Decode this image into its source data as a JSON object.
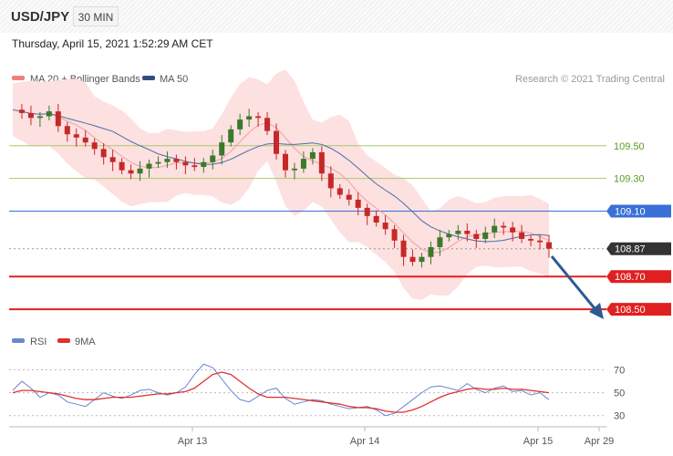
{
  "header": {
    "symbol": "USD/JPY",
    "timeframe": "30 MIN",
    "timestamp": "Thursday, April 15, 2021 1:52:29 AM CET"
  },
  "legend": {
    "ma20_label": "MA 20 + Bollinger Bands",
    "ma50_label": "MA 50",
    "copyright": "Research © 2021 Trading Central",
    "rsi_label": "RSI",
    "rsi_ma_label": "9MA"
  },
  "colors": {
    "bull": "#3a7a2a",
    "bear": "#c62828",
    "bollinger_fill": "#fde0e0",
    "ma20": "#f0a0a0",
    "ma50": "#4a6fa5",
    "resistance": "#a8c86a",
    "pivot": "#3a6fd8",
    "support": "#e02020",
    "current": "#333333",
    "arrow": "#2e5a94",
    "rsi": "#6a86d0",
    "rsi_ma": "#e03030"
  },
  "chart_data": {
    "type": "candlestick",
    "ylim": [
      108.35,
      109.85
    ],
    "x_labels": [
      "Apr 13",
      "Apr 14",
      "Apr 15",
      "Apr 29"
    ],
    "levels": [
      {
        "value": 109.5,
        "label": "109.50",
        "kind": "resistance"
      },
      {
        "value": 109.3,
        "label": "109.30",
        "kind": "resistance"
      },
      {
        "value": 109.1,
        "label": "109.10",
        "kind": "pivot"
      },
      {
        "value": 108.87,
        "label": "108.87",
        "kind": "current"
      },
      {
        "value": 108.7,
        "label": "108.70",
        "kind": "support"
      },
      {
        "value": 108.5,
        "label": "108.50",
        "kind": "support"
      }
    ],
    "close_series": [
      109.72,
      109.7,
      109.67,
      109.68,
      109.71,
      109.62,
      109.57,
      109.55,
      109.52,
      109.48,
      109.43,
      109.4,
      109.35,
      109.33,
      109.36,
      109.39,
      109.4,
      109.42,
      109.4,
      109.38,
      109.37,
      109.4,
      109.44,
      109.52,
      109.6,
      109.66,
      109.68,
      109.67,
      109.59,
      109.45,
      109.35,
      109.36,
      109.42,
      109.46,
      109.33,
      109.24,
      109.2,
      109.17,
      109.12,
      109.07,
      109.03,
      108.99,
      108.92,
      108.82,
      108.79,
      108.82,
      108.88,
      108.94,
      108.96,
      108.98,
      108.96,
      108.93,
      108.97,
      109.01,
      109.0,
      108.97,
      108.93,
      108.92,
      108.91,
      108.87
    ],
    "rsi": {
      "ylim": [
        25,
        80
      ],
      "ticks": [
        70,
        50,
        30
      ],
      "values": [
        52,
        60,
        54,
        46,
        50,
        48,
        42,
        40,
        38,
        44,
        50,
        47,
        45,
        48,
        52,
        53,
        50,
        48,
        50,
        55,
        66,
        75,
        72,
        62,
        52,
        44,
        42,
        47,
        52,
        54,
        45,
        40,
        42,
        44,
        43,
        40,
        38,
        36,
        37,
        38,
        35,
        30,
        32,
        38,
        44,
        50,
        55,
        56,
        54,
        52,
        58,
        53,
        50,
        54,
        56,
        51,
        52,
        48,
        50,
        44
      ],
      "ma_values": [
        50,
        52,
        52,
        51,
        50,
        49,
        47,
        45,
        44,
        44,
        45,
        46,
        46,
        46,
        47,
        48,
        49,
        49,
        50,
        51,
        54,
        60,
        66,
        68,
        66,
        60,
        54,
        49,
        46,
        46,
        46,
        45,
        44,
        43,
        42,
        41,
        40,
        38,
        37,
        37,
        36,
        34,
        33,
        33,
        35,
        38,
        42,
        46,
        49,
        51,
        53,
        54,
        53,
        53,
        54,
        53,
        53,
        52,
        51,
        50
      ]
    }
  }
}
